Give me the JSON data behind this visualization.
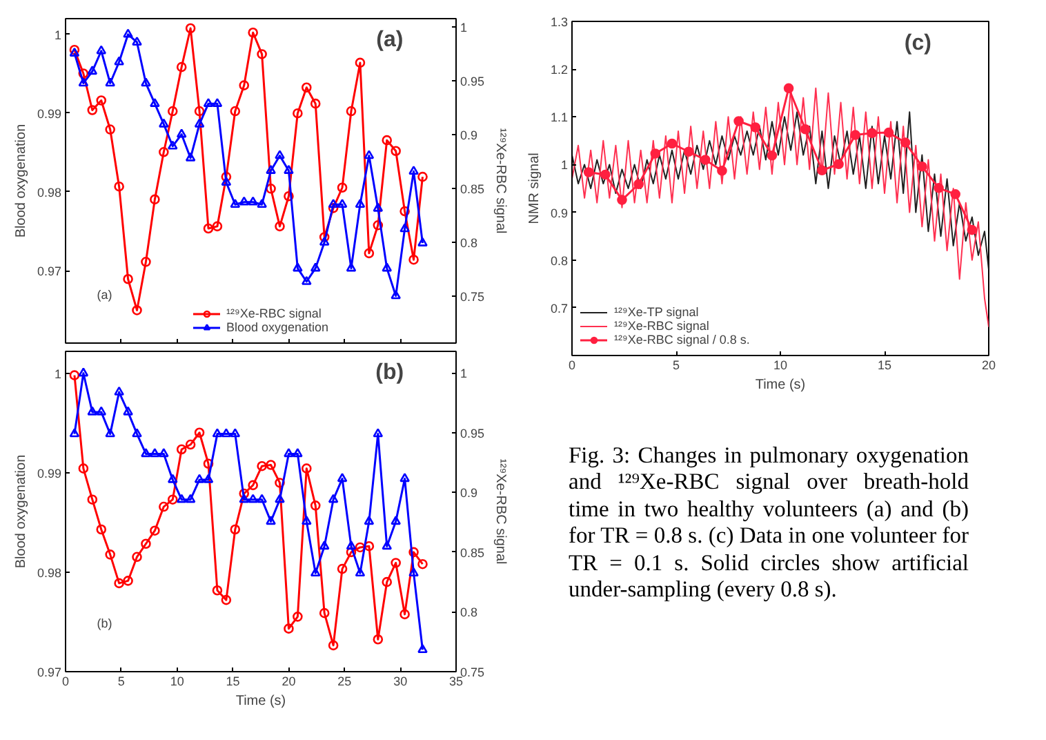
{
  "chart_data": [
    {
      "type": "line",
      "ylabel": "Blood oxygenation",
      "y2label": "¹²⁹Xe-RBC signal",
      "annotations": [
        "(a)",
        "(a)"
      ],
      "x": [
        0.8,
        1.6,
        2.4,
        3.2,
        4,
        4.8,
        5.6,
        6.4,
        7.2,
        8,
        8.8,
        9.6,
        10.4,
        11.2,
        12,
        12.8,
        13.6,
        14.4,
        15.2,
        16,
        16.8,
        17.6,
        18.4,
        19.2,
        20,
        20.8,
        21.6,
        22.4,
        23.2,
        24,
        24.8,
        25.6,
        26.4,
        27.2,
        28,
        28.8,
        29.6,
        30.4,
        31.2,
        32
      ],
      "xlim": [
        0,
        35
      ],
      "xticks": [
        0,
        5,
        10,
        15,
        20,
        25,
        30,
        35
      ],
      "ylim": [
        0.9608,
        1.002
      ],
      "yticks": [
        0.97,
        0.98,
        0.99,
        1
      ],
      "y2lim": [
        0.7065,
        1.008
      ],
      "y2ticks": [
        0.75,
        0.8,
        0.85,
        0.9,
        0.95,
        1
      ],
      "tick_labels": "y",
      "legend": "bottom",
      "series": [
        {
          "name": "¹²⁹Xe-RBC signal",
          "color": "#ff0000",
          "axis": "y2",
          "marker": "circle",
          "values": [
            0.979,
            0.957,
            0.923,
            0.932,
            0.905,
            0.852,
            0.766,
            0.737,
            0.782,
            0.84,
            0.884,
            0.922,
            0.963,
            0.999,
            0.922,
            0.813,
            0.815,
            0.861,
            0.922,
            0.946,
            0.995,
            0.975,
            0.85,
            0.815,
            0.843,
            0.92,
            0.944,
            0.929,
            0.805,
            0.832,
            0.851,
            0.922,
            0.967,
            0.79,
            0.816,
            0.895,
            0.885,
            0.829,
            0.784,
            0.861
          ]
        },
        {
          "name": "Blood oxygenation",
          "color": "#0000ff",
          "marker": "triangle",
          "values": [
            0.9976,
            0.9938,
            0.9953,
            0.9979,
            0.9938,
            0.9965,
            1.0,
            0.999,
            0.9938,
            0.9912,
            0.9886,
            0.9858,
            0.9873,
            0.9843,
            0.9886,
            0.9912,
            0.9912,
            0.9812,
            0.9784,
            0.9787,
            0.9787,
            0.9784,
            0.9827,
            0.9846,
            0.9827,
            0.9703,
            0.9686,
            0.9703,
            0.9736,
            0.9784,
            0.9784,
            0.9703,
            0.9784,
            0.9846,
            0.9779,
            0.9703,
            0.9668,
            0.9753,
            0.9826,
            0.9735
          ]
        }
      ]
    },
    {
      "type": "line",
      "xlabel": "Time (s)",
      "ylabel": "Blood oxygenation",
      "y2label": "¹²⁹Xe-RBC signal",
      "annotations": [
        "(b)",
        "(b)"
      ],
      "x": [
        0.8,
        1.6,
        2.4,
        3.2,
        4,
        4.8,
        5.6,
        6.4,
        7.2,
        8,
        8.8,
        9.6,
        10.4,
        11.2,
        12,
        12.8,
        13.6,
        14.4,
        15.2,
        16,
        16.8,
        17.6,
        18.4,
        19.2,
        20,
        20.8,
        21.6,
        22.4,
        23.2,
        24,
        24.8,
        25.6,
        26.4,
        27.2,
        28,
        28.8,
        29.6,
        30.4,
        31.2,
        32
      ],
      "xlim": [
        0,
        35
      ],
      "xticks": [
        0,
        5,
        10,
        15,
        20,
        25,
        30,
        35
      ],
      "ylim": [
        0.97,
        1.0022
      ],
      "yticks": [
        0.97,
        0.98,
        0.99,
        1
      ],
      "y2lim": [
        0.75,
        1.018
      ],
      "y2ticks": [
        0.75,
        0.8,
        0.85,
        0.9,
        0.95,
        1
      ],
      "series": [
        {
          "color": "#ff0000",
          "axis": "y2",
          "marker": "circle",
          "values": [
            0.998,
            0.92,
            0.894,
            0.869,
            0.848,
            0.824,
            0.826,
            0.846,
            0.857,
            0.868,
            0.888,
            0.894,
            0.936,
            0.94,
            0.95,
            0.924,
            0.818,
            0.81,
            0.869,
            0.899,
            0.906,
            0.922,
            0.923,
            0.908,
            0.786,
            0.796,
            0.92,
            0.889,
            0.799,
            0.772,
            0.836,
            0.85,
            0.854,
            0.855,
            0.777,
            0.825,
            0.841,
            0.798,
            0.85,
            0.84
          ]
        },
        {
          "color": "#0000ff",
          "marker": "triangle",
          "values": [
            0.9939,
            1.0,
            0.9961,
            0.9961,
            0.9939,
            0.9981,
            0.9961,
            0.9939,
            0.9919,
            0.9919,
            0.9919,
            0.9893,
            0.9873,
            0.9873,
            0.9893,
            0.9893,
            0.9939,
            0.9939,
            0.9939,
            0.9873,
            0.9873,
            0.9873,
            0.9851,
            0.9873,
            0.9919,
            0.9919,
            0.9851,
            0.9799,
            0.9826,
            0.9873,
            0.9894,
            0.9826,
            0.9799,
            0.9851,
            0.9939,
            0.9826,
            0.9851,
            0.9894,
            0.9799,
            0.9722
          ]
        }
      ]
    },
    {
      "type": "line",
      "xlabel": "Time (s)",
      "ylabel": "NMR signal",
      "annotations": [
        "(c)",
        "Fig. 3: Changes in pulmonary oxygenation and ¹²⁹Xe-RBC signal over breath-hold time in two healthy volunteers (a) and (b) for TR = 0.8 s. (c) Data in one volunteer for TR = 0.1 s. Solid circles show artificial under-sampling (every 0.8 s)."
      ],
      "xlim": [
        0,
        20
      ],
      "xticks": [
        0,
        5,
        10,
        15,
        20
      ],
      "ylim": [
        0.6,
        1.3
      ],
      "yticks": [
        0.7,
        0.8,
        0.9,
        1,
        1.1,
        1.2,
        1.3
      ],
      "legend": "bottom left",
      "series": [
        {
          "name": "¹²⁹Xe-TP signal",
          "color": "#202020",
          "x": [
            0,
            0.3,
            0.6,
            0.9,
            1.2,
            1.5,
            1.8,
            2.1,
            2.4,
            2.7,
            3,
            3.3,
            3.6,
            3.9,
            4.2,
            4.5,
            4.8,
            5.1,
            5.4,
            5.7,
            6,
            6.3,
            6.6,
            6.9,
            7.2,
            7.5,
            7.8,
            8.1,
            8.4,
            8.7,
            9,
            9.3,
            9.6,
            9.9,
            10.2,
            10.5,
            10.8,
            11.1,
            11.4,
            11.7,
            12,
            12.3,
            12.6,
            12.9,
            13.2,
            13.5,
            13.8,
            14.1,
            14.4,
            14.7,
            15,
            15.3,
            15.6,
            15.9,
            16.2,
            16.5,
            16.8,
            17.1,
            17.4,
            17.7,
            18,
            18.3,
            18.6,
            18.9,
            19.2,
            19.5,
            19.8,
            20
          ],
          "values": [
            1.02,
            0.96,
            1.0,
            0.95,
            1.01,
            0.96,
            1.0,
            0.94,
            0.99,
            0.95,
            1.0,
            0.95,
            1.01,
            0.96,
            1.02,
            0.97,
            1.03,
            0.97,
            1.03,
            0.98,
            1.04,
            0.99,
            1.05,
            1.0,
            1.06,
            1.01,
            1.06,
            1.02,
            1.07,
            1.02,
            1.08,
            1.01,
            1.09,
            1.02,
            1.1,
            1.03,
            1.11,
            1.02,
            1.08,
            0.96,
            1.07,
            0.95,
            1.06,
            1.0,
            1.07,
            0.98,
            1.06,
            0.95,
            1.08,
            0.96,
            1.06,
            0.97,
            1.09,
            0.94,
            1.11,
            0.9,
            1.02,
            0.86,
            0.98,
            0.85,
            0.97,
            0.83,
            0.92,
            0.84,
            0.89,
            0.81,
            0.86,
            0.78
          ]
        },
        {
          "name": "¹²⁹Xe-RBC signal",
          "color": "#ff3050",
          "x": [
            0,
            0.3,
            0.6,
            0.9,
            1.2,
            1.5,
            1.8,
            2.1,
            2.4,
            2.7,
            3,
            3.3,
            3.6,
            3.9,
            4.2,
            4.5,
            4.8,
            5.1,
            5.4,
            5.7,
            6,
            6.3,
            6.6,
            6.9,
            7.2,
            7.5,
            7.8,
            8.1,
            8.4,
            8.7,
            9,
            9.3,
            9.6,
            9.9,
            10.2,
            10.5,
            10.8,
            11.1,
            11.4,
            11.7,
            12,
            12.3,
            12.6,
            12.9,
            13.2,
            13.5,
            13.8,
            14.1,
            14.4,
            14.7,
            15,
            15.3,
            15.6,
            15.9,
            16.2,
            16.5,
            16.8,
            17.1,
            17.4,
            17.7,
            18,
            18.3,
            18.6,
            18.9,
            19.2,
            19.5,
            19.8,
            20
          ],
          "values": [
            0.97,
            1.04,
            0.93,
            1.03,
            0.92,
            1.05,
            0.93,
            1.04,
            0.91,
            1.05,
            0.92,
            1.03,
            0.92,
            1.05,
            0.93,
            1.06,
            0.92,
            1.07,
            0.94,
            1.08,
            0.95,
            1.07,
            0.95,
            1.09,
            0.96,
            1.1,
            0.97,
            1.1,
            0.98,
            1.11,
            0.99,
            1.12,
            0.98,
            1.13,
            1.0,
            1.16,
            1.0,
            1.14,
            0.99,
            1.16,
            0.98,
            1.15,
            0.98,
            1.13,
            0.97,
            1.12,
            0.96,
            1.11,
            0.95,
            1.1,
            0.94,
            1.09,
            0.92,
            1.08,
            0.9,
            1.04,
            0.87,
            1.01,
            0.84,
            0.98,
            0.82,
            0.95,
            0.76,
            0.92,
            0.8,
            0.88,
            0.72,
            0.66
          ]
        },
        {
          "name": "¹²⁹Xe-RBC signal / 0.8 s.",
          "color": "#ff2040",
          "marker": "circle",
          "x": [
            0.8,
            1.6,
            2.4,
            3.2,
            4,
            4.8,
            5.6,
            6.4,
            7.2,
            8,
            8.8,
            9.6,
            10.4,
            11.2,
            12,
            12.8,
            13.6,
            14.4,
            15.2,
            16,
            16.8,
            17.6,
            18.4,
            19.2
          ],
          "values": [
            0.984,
            0.979,
            0.926,
            0.959,
            1.023,
            1.044,
            1.027,
            1.01,
            0.987,
            1.091,
            1.078,
            1.019,
            1.16,
            1.074,
            0.988,
            1.001,
            1.062,
            1.066,
            1.067,
            1.046,
            0.996,
            0.951,
            0.938,
            0.863
          ]
        }
      ]
    }
  ]
}
